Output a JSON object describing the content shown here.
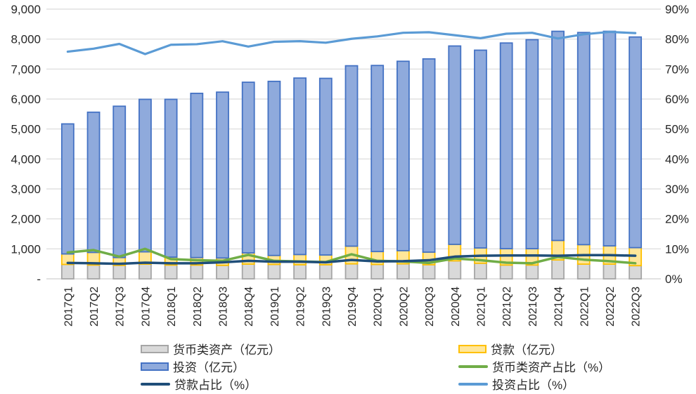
{
  "chart_data": {
    "type": "bar",
    "subtype": "stacked-bars-with-percentage-lines",
    "title": "",
    "xlabel": "",
    "ylabel": "",
    "grid": true,
    "grid_color": "#D9D9D9",
    "axis_text_color": "#262626",
    "legend_position": "bottom",
    "categories": [
      "2017Q1",
      "2017Q2",
      "2017Q3",
      "2017Q4",
      "2018Q1",
      "2018Q2",
      "2018Q3",
      "2018Q4",
      "2019Q1",
      "2019Q2",
      "2019Q3",
      "2019Q4",
      "2020Q1",
      "2020Q2",
      "2020Q3",
      "2020Q4",
      "2021Q1",
      "2021Q2",
      "2021Q3",
      "2021Q4",
      "2022Q1",
      "2022Q2",
      "2022Q3"
    ],
    "left_axis": {
      "min": 0,
      "max": 9000,
      "step": 1000,
      "tick_labels": [
        "9,000",
        "8,000",
        "7,000",
        "6,000",
        "5,000",
        "4,000",
        "3,000",
        "2,000",
        "1,000",
        "-"
      ]
    },
    "right_axis": {
      "min": 0,
      "max": 90,
      "step": 10,
      "tick_labels": [
        "90%",
        "80%",
        "70%",
        "60%",
        "50%",
        "40%",
        "30%",
        "20%",
        "10%",
        "0%"
      ]
    },
    "bar_series": [
      {
        "name": "货币类资产（亿元）",
        "axis": "left",
        "stack_order": 1,
        "fill": "#D9D9D9",
        "border": "#A6A6A6",
        "values": [
          480,
          460,
          450,
          490,
          460,
          460,
          450,
          490,
          480,
          470,
          470,
          500,
          480,
          500,
          470,
          600,
          520,
          460,
          460,
          630,
          490,
          490,
          440
        ]
      },
      {
        "name": "贷款（亿元）",
        "axis": "left",
        "stack_order": 2,
        "fill": "#FFE699",
        "border": "#FFC000",
        "values": [
          350,
          420,
          260,
          410,
          265,
          250,
          245,
          375,
          300,
          340,
          325,
          590,
          430,
          440,
          420,
          550,
          510,
          545,
          545,
          650,
          650,
          610,
          600
        ]
      },
      {
        "name": "投资（亿元）",
        "axis": "left",
        "stack_order": 3,
        "fill": "#8FAADC",
        "border": "#4472C4",
        "values": [
          4340,
          4680,
          5050,
          5090,
          5265,
          5480,
          5535,
          5695,
          5810,
          5890,
          5895,
          6020,
          6210,
          6320,
          6450,
          6620,
          6600,
          6865,
          6975,
          6980,
          7080,
          7160,
          7030
        ]
      }
    ],
    "line_series": [
      {
        "name": "货币类资产占比（%）",
        "axis": "right",
        "color": "#70AD47",
        "width": 3.5,
        "values": [
          8.8,
          9.6,
          7.4,
          10.0,
          6.6,
          6.2,
          6.0,
          8.0,
          6.0,
          5.8,
          5.6,
          8.2,
          6.0,
          5.8,
          5.3,
          6.8,
          6.2,
          5.4,
          5.2,
          7.3,
          6.4,
          5.9,
          5.2
        ]
      },
      {
        "name": "贷款占比（%）",
        "axis": "right",
        "color": "#1F4E79",
        "width": 3.5,
        "values": [
          5.3,
          5.2,
          5.0,
          5.4,
          5.2,
          5.2,
          5.5,
          6.0,
          5.7,
          5.7,
          5.5,
          6.3,
          5.8,
          5.9,
          6.2,
          7.4,
          7.7,
          7.8,
          7.8,
          7.7,
          7.9,
          7.9,
          7.7
        ]
      },
      {
        "name": "投资占比（%）",
        "axis": "right",
        "color": "#5B9BD5",
        "width": 3.2,
        "values": [
          75.8,
          76.8,
          78.4,
          75.0,
          78.1,
          78.3,
          79.3,
          77.5,
          79.1,
          79.3,
          78.8,
          80.1,
          80.9,
          82.1,
          82.3,
          81.3,
          80.3,
          81.8,
          82.1,
          80.2,
          81.6,
          82.4,
          82.0
        ]
      }
    ]
  },
  "legend": {
    "items": [
      {
        "label": "货币类资产（亿元）",
        "swatch": "bar",
        "fill": "#D9D9D9",
        "border": "#A6A6A6"
      },
      {
        "label": "贷款（亿元）",
        "swatch": "bar",
        "fill": "#FFE699",
        "border": "#FFC000"
      },
      {
        "label": "投资（亿元）",
        "swatch": "bar",
        "fill": "#8FAADC",
        "border": "#4472C4"
      },
      {
        "label": "货币类资产占比（%）",
        "swatch": "line",
        "fill": "#70AD47",
        "border": "#70AD47"
      },
      {
        "label": "贷款占比（%）",
        "swatch": "line",
        "fill": "#1F4E79",
        "border": "#1F4E79"
      },
      {
        "label": "投资占比（%）",
        "swatch": "line",
        "fill": "#5B9BD5",
        "border": "#5B9BD5"
      }
    ]
  }
}
